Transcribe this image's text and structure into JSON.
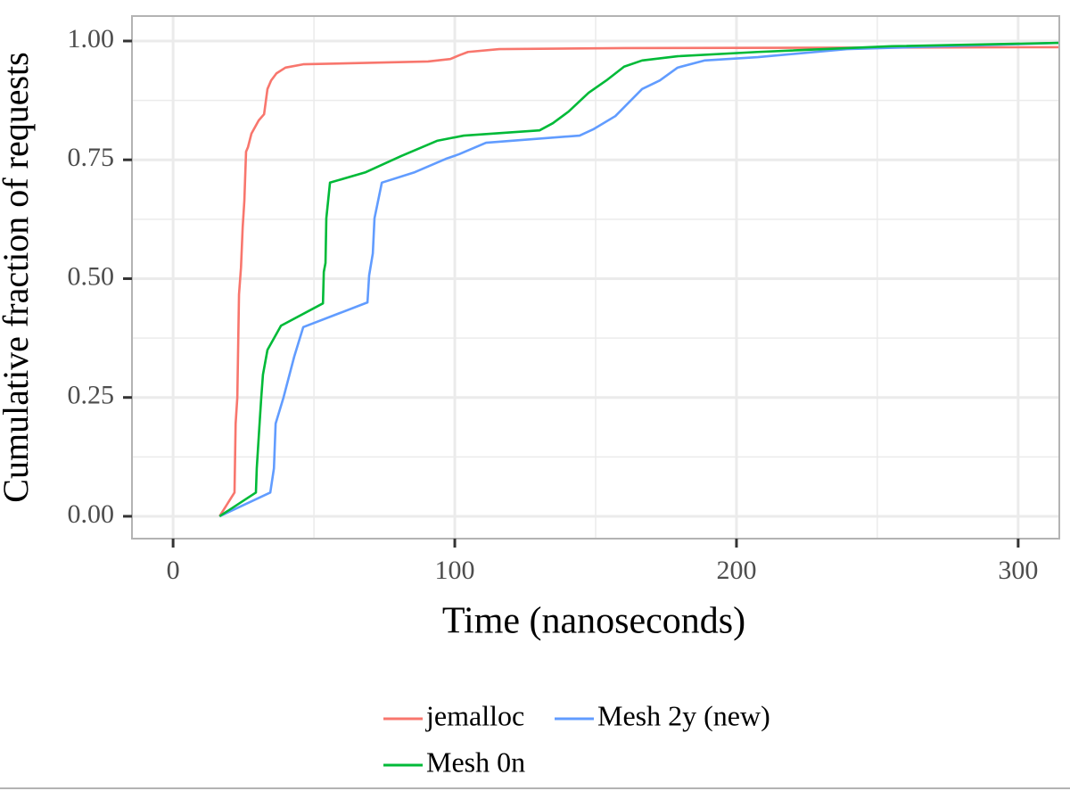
{
  "chart_data": {
    "type": "line",
    "x_label": "Time (nanoseconds)",
    "y_label": "Cumulative fraction of requests",
    "xlim": [
      -14.6,
      314.6
    ],
    "ylim": [
      -0.047,
      1.0525
    ],
    "xticks": [
      0,
      100,
      200,
      300
    ],
    "yticks": [
      {
        "value": 0,
        "label": "0.00"
      },
      {
        "value": 0.25,
        "label": "0.25"
      },
      {
        "value": 0.5,
        "label": "0.50"
      },
      {
        "value": 0.75,
        "label": "0.75"
      },
      {
        "value": 1,
        "label": "1.00"
      }
    ],
    "grid": true,
    "legend_position": "bottom",
    "series": [
      {
        "name": "jemalloc",
        "color": "#F8766D",
        "x": [
          16.5,
          21.8,
          22.2,
          22.8,
          23.4,
          24.1,
          24.7,
          25.3,
          25.9,
          26.6,
          27.8,
          30.4,
          32.3,
          33.5,
          34.8,
          36.7,
          39.9,
          46.2,
          90.5,
          98.4,
          101.6,
          104.7,
          115.8,
          160,
          314.6
        ],
        "values": [
          0,
          0.05,
          0.195,
          0.25,
          0.467,
          0.523,
          0.608,
          0.664,
          0.767,
          0.777,
          0.805,
          0.833,
          0.846,
          0.899,
          0.917,
          0.932,
          0.944,
          0.951,
          0.957,
          0.962,
          0.97,
          0.977,
          0.983,
          0.985,
          0.987
        ]
      },
      {
        "name": "Mesh 2y (new)",
        "color": "#619CFF",
        "x": [
          16.5,
          34.5,
          35.8,
          36.4,
          39.2,
          43.0,
          46.2,
          69.0,
          69.6,
          70.9,
          71.5,
          74.1,
          85.8,
          96.8,
          101.6,
          111.1,
          144.3,
          149.1,
          157.0,
          166.5,
          172.8,
          179.1,
          188.6,
          207.6,
          239.2,
          314.6
        ],
        "values": [
          0,
          0.05,
          0.101,
          0.195,
          0.25,
          0.336,
          0.398,
          0.45,
          0.507,
          0.553,
          0.627,
          0.702,
          0.724,
          0.752,
          0.762,
          0.786,
          0.801,
          0.814,
          0.842,
          0.899,
          0.917,
          0.944,
          0.959,
          0.966,
          0.983,
          0.996
        ]
      },
      {
        "name": "Mesh 0n",
        "color": "#00BA38",
        "x": [
          16.5,
          29.4,
          29.7,
          30.7,
          31.3,
          31.9,
          33.5,
          38.3,
          53.2,
          53.5,
          54.1,
          54.4,
          55.7,
          68.4,
          81.0,
          93.7,
          103.2,
          130.1,
          134.8,
          140.5,
          147.5,
          153.8,
          160.1,
          166.5,
          179.1,
          207.6,
          255.1,
          314.6
        ],
        "values": [
          0,
          0.05,
          0.101,
          0.195,
          0.25,
          0.298,
          0.35,
          0.401,
          0.448,
          0.514,
          0.533,
          0.627,
          0.702,
          0.724,
          0.758,
          0.79,
          0.801,
          0.812,
          0.827,
          0.852,
          0.891,
          0.917,
          0.946,
          0.959,
          0.968,
          0.977,
          0.989,
          0.996
        ]
      }
    ]
  }
}
